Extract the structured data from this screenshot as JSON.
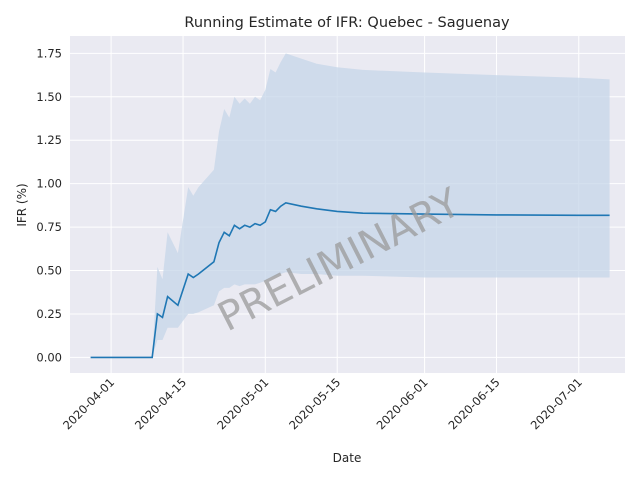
{
  "chart_data": {
    "type": "line",
    "title": "Running Estimate of IFR: Quebec - Saguenay",
    "xlabel": "Date",
    "ylabel": "IFR (%)",
    "watermark": "PRELIMINARY",
    "x_ticks": [
      "2020-04-01",
      "2020-04-15",
      "2020-05-01",
      "2020-05-15",
      "2020-06-01",
      "2020-06-15",
      "2020-07-01"
    ],
    "y_ticks": [
      "0.00",
      "0.25",
      "0.50",
      "0.75",
      "1.00",
      "1.25",
      "1.50",
      "1.75"
    ],
    "xlim": [
      "2020-03-24",
      "2020-07-10"
    ],
    "ylim": [
      -0.09,
      1.85
    ],
    "grid": true,
    "colors": {
      "background": "#eaeaf2",
      "line": "#1f77b4",
      "band": "#c6d6e8",
      "grid": "#ffffff"
    },
    "series": [
      {
        "x": [
          "2020-03-28",
          "2020-03-31",
          "2020-04-03",
          "2020-04-06",
          "2020-04-09",
          "2020-04-10",
          "2020-04-11",
          "2020-04-12",
          "2020-04-14",
          "2020-04-16",
          "2020-04-17",
          "2020-04-18",
          "2020-04-21",
          "2020-04-22",
          "2020-04-23",
          "2020-04-24",
          "2020-04-25",
          "2020-04-26",
          "2020-04-27",
          "2020-04-28",
          "2020-04-29",
          "2020-04-30",
          "2020-05-01",
          "2020-05-02",
          "2020-05-03",
          "2020-05-04",
          "2020-05-05",
          "2020-05-08",
          "2020-05-11",
          "2020-05-15",
          "2020-05-20",
          "2020-06-01",
          "2020-06-15",
          "2020-07-01",
          "2020-07-07"
        ],
        "y": [
          0,
          0,
          0,
          0,
          0,
          0.25,
          0.23,
          0.35,
          0.3,
          0.48,
          0.46,
          0.48,
          0.55,
          0.66,
          0.72,
          0.7,
          0.76,
          0.74,
          0.76,
          0.75,
          0.77,
          0.76,
          0.78,
          0.85,
          0.84,
          0.87,
          0.89,
          0.87,
          0.855,
          0.84,
          0.83,
          0.825,
          0.82,
          0.818,
          0.818
        ],
        "lower": [
          0,
          0,
          0,
          0,
          0,
          0.1,
          0.1,
          0.17,
          0.17,
          0.25,
          0.25,
          0.26,
          0.3,
          0.38,
          0.4,
          0.4,
          0.42,
          0.41,
          0.42,
          0.42,
          0.42,
          0.43,
          0.44,
          0.46,
          0.47,
          0.48,
          0.49,
          0.48,
          0.48,
          0.47,
          0.47,
          0.46,
          0.46,
          0.46,
          0.46
        ],
        "upper": [
          0,
          0,
          0,
          0,
          0,
          0.52,
          0.45,
          0.72,
          0.6,
          0.98,
          0.93,
          0.98,
          1.08,
          1.3,
          1.43,
          1.38,
          1.5,
          1.46,
          1.49,
          1.46,
          1.5,
          1.48,
          1.54,
          1.66,
          1.64,
          1.7,
          1.75,
          1.72,
          1.69,
          1.67,
          1.655,
          1.64,
          1.625,
          1.61,
          1.6
        ]
      }
    ]
  }
}
